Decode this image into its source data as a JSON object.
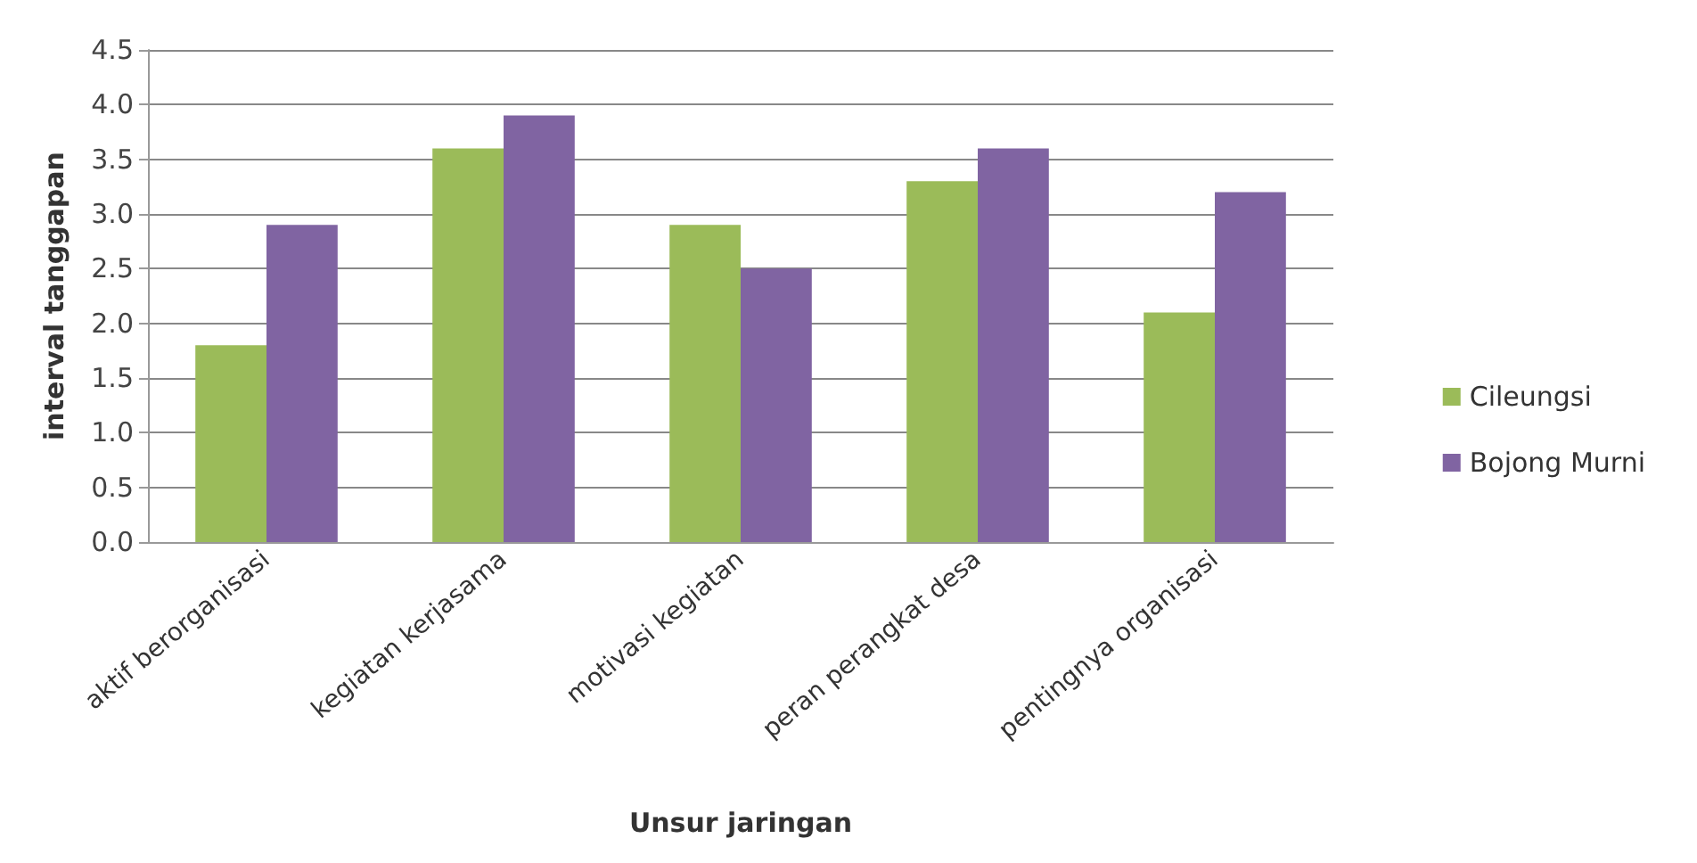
{
  "chart_data": {
    "type": "bar",
    "xlabel": "Unsur jaringan",
    "ylabel": "interval tanggapan",
    "categories": [
      "aktif berorganisasi",
      "kegiatan kerjasama",
      "motivasi kegiatan",
      "peran perangkat desa",
      "pentingnya organisasi"
    ],
    "series": [
      {
        "name": "Cileungsi",
        "color": "#9bbb59",
        "values": [
          1.8,
          3.6,
          2.9,
          3.3,
          2.1
        ]
      },
      {
        "name": "Bojong Murni",
        "color": "#8064a2",
        "values": [
          2.9,
          3.9,
          2.5,
          3.6,
          3.2
        ]
      }
    ],
    "ylim": [
      0,
      4.5
    ],
    "yticks": [
      {
        "value": 0,
        "label": "0.0"
      },
      {
        "value": 0.5,
        "label": "0.5"
      },
      {
        "value": 1,
        "label": "1.0"
      },
      {
        "value": 1.5,
        "label": "1.5"
      },
      {
        "value": 2,
        "label": "2.0"
      },
      {
        "value": 2.5,
        "label": "2.5"
      },
      {
        "value": 3,
        "label": "3.0"
      },
      {
        "value": 3.5,
        "label": "3.5"
      },
      {
        "value": 4,
        "label": "4.0"
      },
      {
        "value": 4.5,
        "label": "4.5"
      }
    ],
    "grid": "y",
    "legend": "right"
  }
}
